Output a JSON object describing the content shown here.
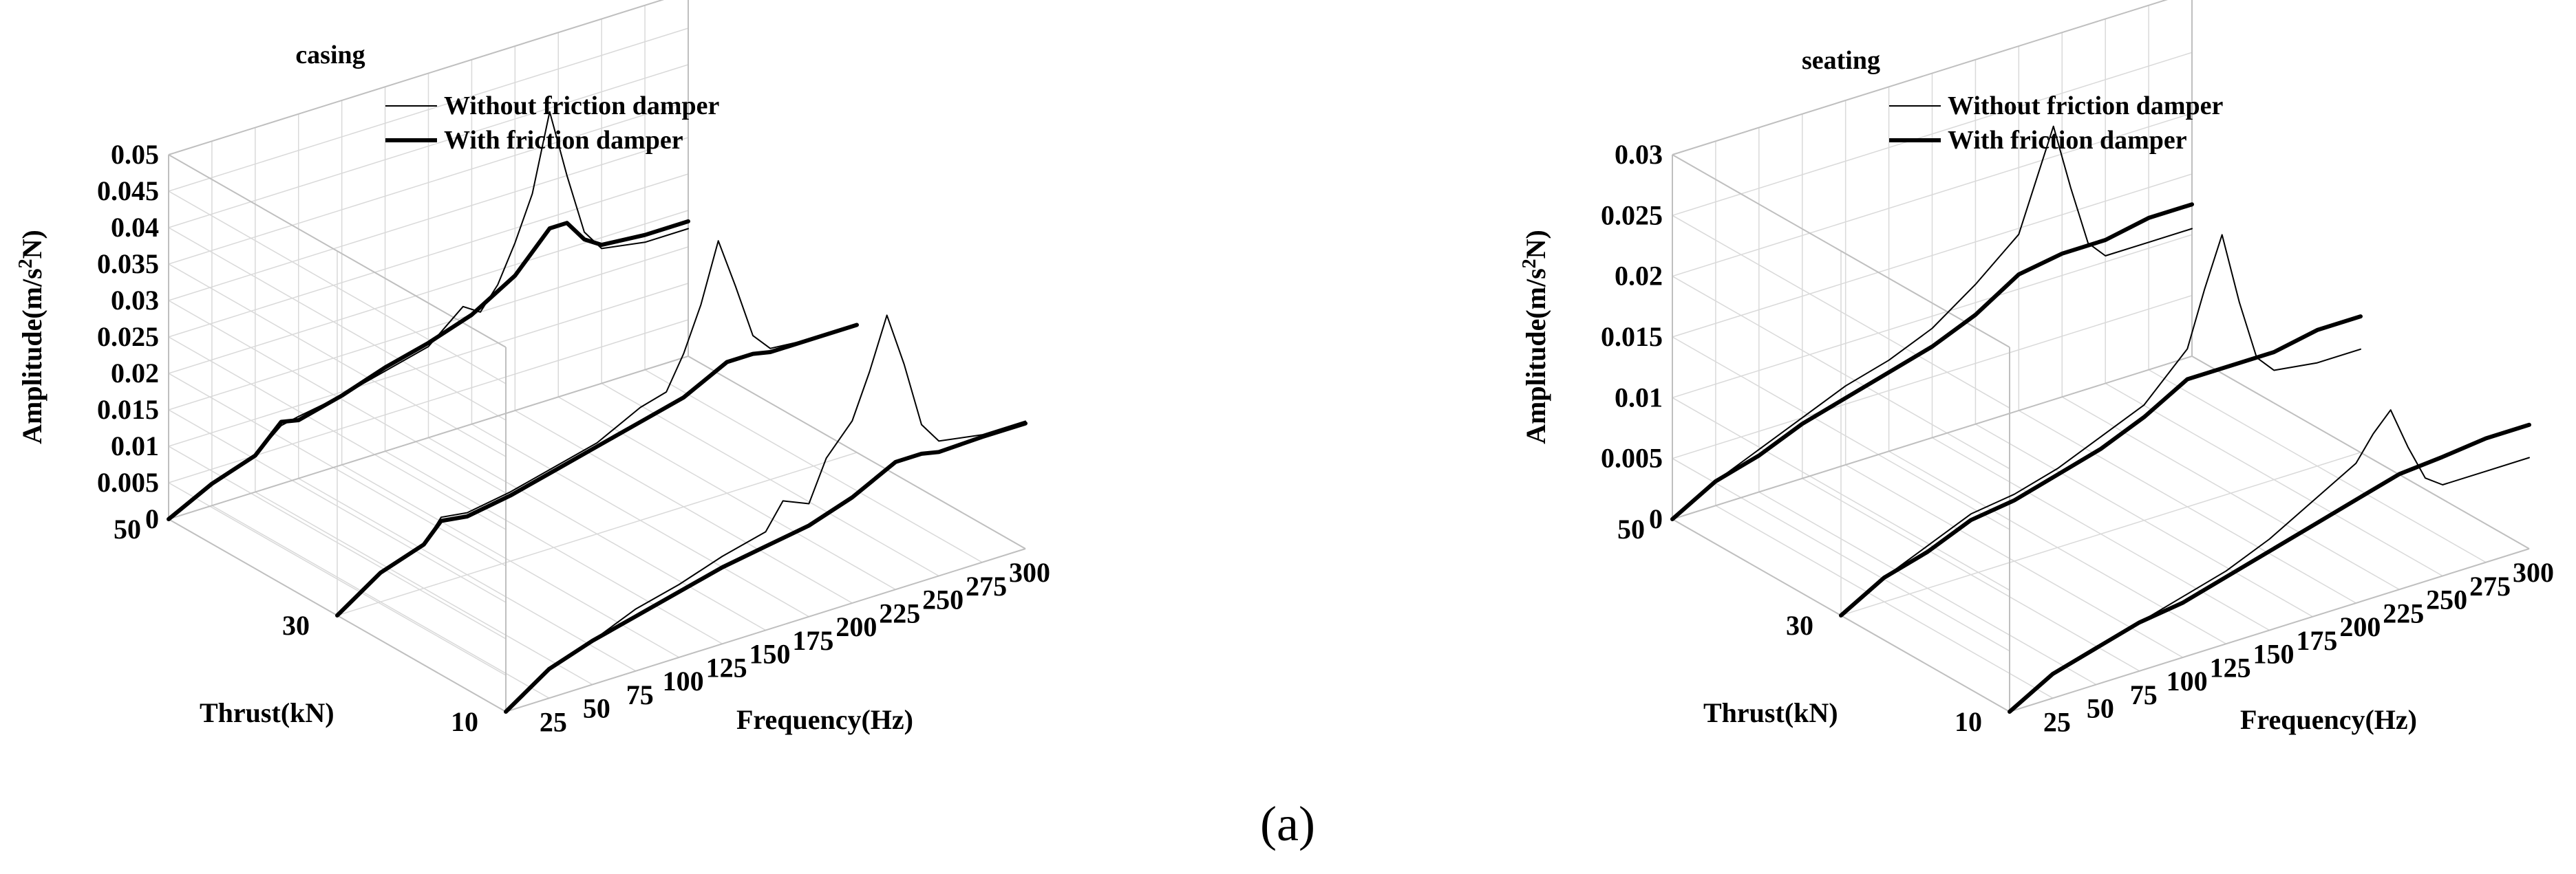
{
  "caption": "(a)",
  "legend": {
    "without": "Without friction damper",
    "with": "With friction damper"
  },
  "colors": {
    "without": "#000000",
    "with": "#000000",
    "grid": "#d9d9d9"
  },
  "chart_data": [
    {
      "type": "line",
      "title": "casing",
      "xlabel": "Frequency(Hz)",
      "ylabel": "Thrust(kN)",
      "zlabel": "Amplitude(m/s²N)",
      "zlabel_parts": {
        "base": "Amplitude(m/s",
        "sup": "2",
        "tail": "N)"
      },
      "x_ticks": [
        25,
        50,
        75,
        100,
        125,
        150,
        175,
        200,
        225,
        250,
        275,
        300
      ],
      "y_ticks": [
        10,
        30,
        50
      ],
      "z_ticks": [
        "0",
        "0.005",
        "0.01",
        "0.015",
        "0.02",
        "0.025",
        "0.03",
        "0.035",
        "0.04",
        "0.045",
        "0.05"
      ],
      "xlim": [
        0,
        300
      ],
      "ylim": [
        10,
        50
      ],
      "zlim": [
        0,
        0.05
      ],
      "series": [
        {
          "name": "Without friction damper",
          "thrust": 10,
          "x": [
            0,
            25,
            50,
            75,
            100,
            125,
            150,
            160,
            175,
            185,
            200,
            210,
            220,
            230,
            240,
            250,
            275,
            300
          ],
          "z": [
            0,
            0.004,
            0.006,
            0.0085,
            0.01,
            0.012,
            0.0135,
            0.017,
            0.0155,
            0.021,
            0.025,
            0.031,
            0.038,
            0.0305,
            0.0215,
            0.0185,
            0.0175,
            0.0175
          ]
        },
        {
          "name": "With friction damper",
          "thrust": 10,
          "x": [
            0,
            25,
            50,
            75,
            100,
            125,
            150,
            175,
            200,
            225,
            240,
            250,
            275,
            300
          ],
          "z": [
            0,
            0.004,
            0.006,
            0.0075,
            0.009,
            0.0105,
            0.0115,
            0.0125,
            0.0145,
            0.0175,
            0.0175,
            0.017,
            0.0172,
            0.0172
          ]
        },
        {
          "name": "Without friction damper",
          "thrust": 30,
          "x": [
            0,
            25,
            50,
            60,
            75,
            100,
            125,
            150,
            175,
            190,
            200,
            210,
            220,
            230,
            240,
            250,
            275,
            300
          ],
          "z": [
            0,
            0.004,
            0.006,
            0.009,
            0.0085,
            0.0095,
            0.011,
            0.0125,
            0.0155,
            0.0165,
            0.021,
            0.027,
            0.035,
            0.028,
            0.0205,
            0.018,
            0.0175,
            0.0175
          ]
        },
        {
          "name": "With friction damper",
          "thrust": 30,
          "x": [
            0,
            25,
            50,
            60,
            75,
            100,
            125,
            150,
            175,
            200,
            225,
            240,
            250,
            275,
            300
          ],
          "z": [
            0,
            0.004,
            0.006,
            0.0085,
            0.008,
            0.009,
            0.0105,
            0.012,
            0.0135,
            0.015,
            0.018,
            0.018,
            0.0175,
            0.0175,
            0.0175
          ]
        },
        {
          "name": "Without friction damper",
          "thrust": 50,
          "x": [
            0,
            25,
            50,
            65,
            75,
            100,
            125,
            150,
            170,
            180,
            190,
            200,
            210,
            220,
            230,
            240,
            250,
            275,
            300
          ],
          "z": [
            0,
            0.003,
            0.005,
            0.008,
            0.0085,
            0.0095,
            0.011,
            0.0125,
            0.0165,
            0.015,
            0.018,
            0.023,
            0.029,
            0.0395,
            0.03,
            0.0215,
            0.0185,
            0.0175,
            0.0175
          ]
        },
        {
          "name": "With friction damper",
          "thrust": 50,
          "x": [
            0,
            25,
            50,
            65,
            75,
            100,
            125,
            150,
            175,
            200,
            220,
            230,
            240,
            250,
            275,
            300
          ],
          "z": [
            0,
            0.003,
            0.005,
            0.0085,
            0.008,
            0.0095,
            0.0115,
            0.013,
            0.015,
            0.0185,
            0.0235,
            0.0235,
            0.0205,
            0.019,
            0.0185,
            0.0185
          ]
        }
      ]
    },
    {
      "type": "line",
      "title": "seating",
      "xlabel": "Frequency(Hz)",
      "ylabel": "Thrust(kN)",
      "zlabel": "Amplitude(m/s²N)",
      "zlabel_parts": {
        "base": "Amplitude(m/s",
        "sup": "2",
        "tail": "N)"
      },
      "x_ticks": [
        25,
        50,
        75,
        100,
        125,
        150,
        175,
        200,
        225,
        250,
        275,
        300
      ],
      "y_ticks": [
        10,
        30,
        50
      ],
      "z_ticks": [
        "0",
        "0.005",
        "0.01",
        "0.015",
        "0.02",
        "0.025",
        "0.03"
      ],
      "xlim": [
        0,
        300
      ],
      "ylim": [
        10,
        50
      ],
      "zlim": [
        0,
        0.03
      ],
      "series": [
        {
          "name": "Without friction damper",
          "thrust": 10,
          "x": [
            0,
            25,
            50,
            75,
            100,
            125,
            150,
            175,
            200,
            210,
            220,
            230,
            240,
            250,
            275,
            300
          ],
          "z": [
            0,
            0.002,
            0.003,
            0.004,
            0.005,
            0.006,
            0.0075,
            0.0095,
            0.0115,
            0.0135,
            0.015,
            0.0115,
            0.0085,
            0.0075,
            0.0075,
            0.0075
          ]
        },
        {
          "name": "With friction damper",
          "thrust": 10,
          "x": [
            0,
            25,
            50,
            75,
            100,
            125,
            150,
            175,
            200,
            225,
            250,
            275,
            300
          ],
          "z": [
            0,
            0.002,
            0.003,
            0.004,
            0.0045,
            0.0055,
            0.0065,
            0.0075,
            0.0085,
            0.0095,
            0.0098,
            0.0102,
            0.0102
          ]
        },
        {
          "name": "Without friction damper",
          "thrust": 30,
          "x": [
            0,
            25,
            50,
            75,
            100,
            125,
            150,
            175,
            200,
            210,
            220,
            230,
            240,
            250,
            275,
            300
          ],
          "z": [
            0,
            0.002,
            0.0035,
            0.005,
            0.0055,
            0.0065,
            0.008,
            0.0095,
            0.013,
            0.0175,
            0.0215,
            0.0155,
            0.0105,
            0.009,
            0.0085,
            0.0085
          ]
        },
        {
          "name": "With friction damper",
          "thrust": 30,
          "x": [
            0,
            25,
            50,
            75,
            100,
            125,
            150,
            175,
            200,
            225,
            250,
            275,
            300
          ],
          "z": [
            0,
            0.002,
            0.003,
            0.0045,
            0.005,
            0.006,
            0.007,
            0.0085,
            0.0105,
            0.0105,
            0.0105,
            0.0112,
            0.0112
          ]
        },
        {
          "name": "Without friction damper",
          "thrust": 50,
          "x": [
            0,
            25,
            50,
            75,
            100,
            125,
            150,
            175,
            200,
            210,
            220,
            230,
            240,
            250,
            275,
            300
          ],
          "z": [
            0,
            0.002,
            0.0035,
            0.005,
            0.0065,
            0.0075,
            0.009,
            0.0115,
            0.0145,
            0.0185,
            0.0225,
            0.017,
            0.012,
            0.0105,
            0.0105,
            0.0105
          ]
        },
        {
          "name": "With friction damper",
          "thrust": 50,
          "x": [
            0,
            25,
            50,
            75,
            100,
            125,
            150,
            175,
            200,
            225,
            250,
            275,
            300
          ],
          "z": [
            0,
            0.002,
            0.003,
            0.0045,
            0.0055,
            0.0065,
            0.0075,
            0.009,
            0.0112,
            0.0118,
            0.0118,
            0.0125,
            0.0125
          ]
        }
      ]
    }
  ]
}
